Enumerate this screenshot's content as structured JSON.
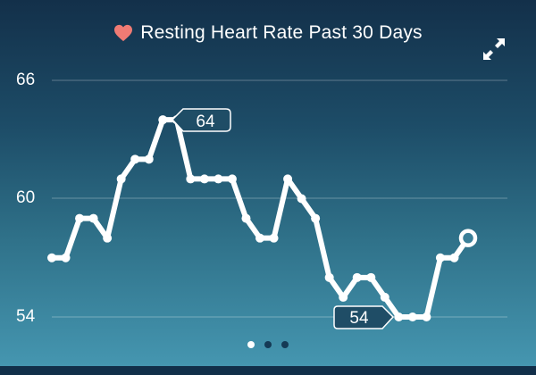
{
  "header": {
    "icon": "heart-icon",
    "title": "Resting Heart Rate Past 30 Days",
    "expand_icon": "expand-arrows-icon"
  },
  "colors": {
    "background_top": "#13304a",
    "background_bottom": "#4596b0",
    "line": "#ffffff",
    "heart": "#f07b74",
    "callout_fill": "#1f4d66",
    "dot_inactive": "#153a55"
  },
  "axis": {
    "y_labels": [
      "66",
      "60",
      "54"
    ]
  },
  "callouts": {
    "max_label": "64",
    "min_label": "54"
  },
  "pagination": {
    "pages": 3,
    "active_index": 0
  },
  "chart_data": {
    "type": "line",
    "title": "Resting Heart Rate Past 30 Days",
    "xlabel": "",
    "ylabel": "",
    "ylim": [
      54,
      66
    ],
    "y_ticks": [
      54,
      60,
      66
    ],
    "grid": true,
    "x": [
      1,
      2,
      3,
      4,
      5,
      6,
      7,
      8,
      9,
      10,
      11,
      12,
      13,
      14,
      15,
      16,
      17,
      18,
      19,
      20,
      21,
      22,
      23,
      24,
      25,
      26,
      27,
      28,
      29,
      30,
      31
    ],
    "values": [
      57,
      57,
      59,
      59,
      58,
      61,
      62,
      62,
      64,
      64,
      61,
      61,
      61,
      61,
      59,
      58,
      58,
      61,
      60,
      59,
      56,
      55,
      56,
      56,
      55,
      54,
      54,
      54,
      57,
      57,
      58
    ],
    "annotations": [
      {
        "text": "64",
        "type": "max"
      },
      {
        "text": "54",
        "type": "min"
      }
    ],
    "last_point_highlighted": true
  }
}
